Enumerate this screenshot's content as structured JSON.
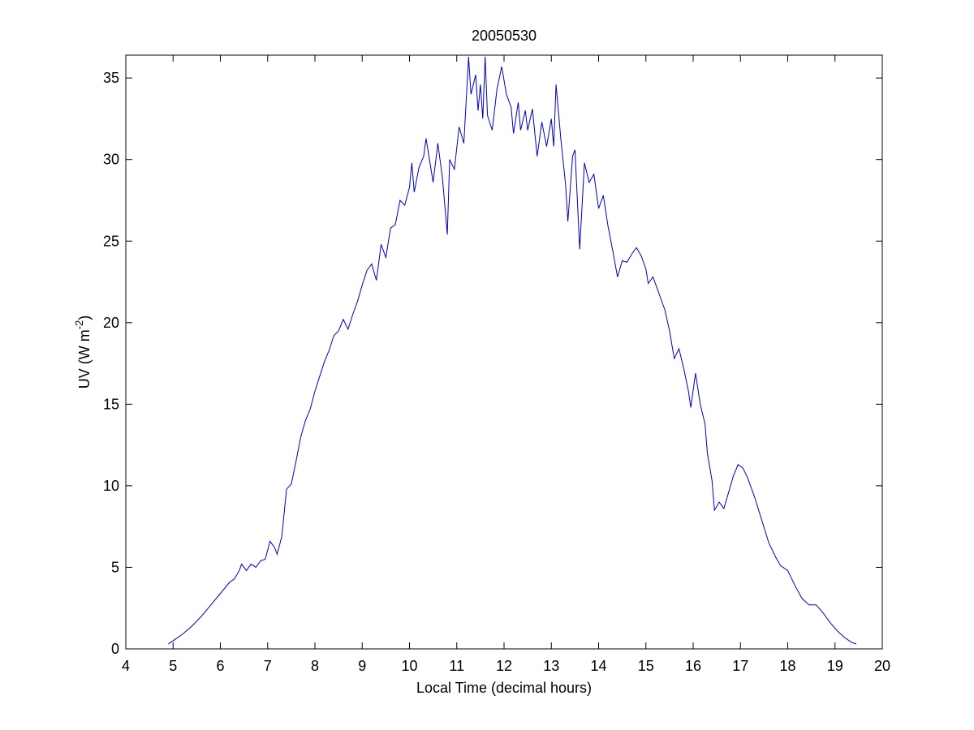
{
  "chart_data": {
    "type": "line",
    "title": "20050530",
    "xlabel": "Local Time (decimal hours)",
    "ylabel": {
      "text": "UV (W m",
      "sup": "-2",
      "suffix": ")"
    },
    "xlim": [
      4,
      20
    ],
    "xticks": [
      4,
      5,
      6,
      7,
      8,
      9,
      10,
      11,
      12,
      13,
      14,
      15,
      16,
      17,
      18,
      19,
      20
    ],
    "ylim": [
      0,
      36.4
    ],
    "yticks": [
      0,
      5,
      10,
      15,
      20,
      25,
      30,
      35
    ],
    "grid": false,
    "series": [
      {
        "color": "#0000c0",
        "x": [
          4.9,
          5.0,
          5.2,
          5.4,
          5.6,
          5.8,
          6.0,
          6.2,
          6.3,
          6.4,
          6.45,
          6.55,
          6.65,
          6.75,
          6.85,
          6.95,
          7.05,
          7.15,
          7.2,
          7.3,
          7.4,
          7.5,
          7.6,
          7.7,
          7.8,
          7.9,
          8.0,
          8.1,
          8.2,
          8.3,
          8.4,
          8.5,
          8.6,
          8.7,
          8.8,
          8.9,
          9.0,
          9.1,
          9.2,
          9.3,
          9.4,
          9.5,
          9.6,
          9.7,
          9.8,
          9.9,
          10.0,
          10.05,
          10.1,
          10.2,
          10.3,
          10.35,
          10.45,
          10.5,
          10.6,
          10.7,
          10.8,
          10.85,
          10.95,
          11.05,
          11.15,
          11.25,
          11.3,
          11.4,
          11.45,
          11.5,
          11.55,
          11.6,
          11.65,
          11.75,
          11.85,
          11.95,
          12.05,
          12.15,
          12.2,
          12.3,
          12.35,
          12.45,
          12.5,
          12.6,
          12.7,
          12.8,
          12.9,
          13.0,
          13.05,
          13.1,
          13.2,
          13.3,
          13.35,
          13.45,
          13.5,
          13.6,
          13.7,
          13.8,
          13.9,
          14.0,
          14.1,
          14.2,
          14.3,
          14.4,
          14.5,
          14.6,
          14.7,
          14.8,
          14.9,
          15.0,
          15.05,
          15.15,
          15.3,
          15.4,
          15.5,
          15.6,
          15.7,
          15.8,
          15.9,
          15.95,
          16.05,
          16.15,
          16.25,
          16.3,
          16.4,
          16.45,
          16.55,
          16.65,
          16.75,
          16.85,
          16.95,
          17.05,
          17.15,
          17.3,
          17.45,
          17.6,
          17.75,
          17.85,
          18.0,
          18.15,
          18.3,
          18.45,
          18.6,
          18.75,
          18.9,
          19.05,
          19.2,
          19.35,
          19.45
        ],
        "values": [
          0.3,
          0.5,
          0.9,
          1.4,
          2.0,
          2.7,
          3.4,
          4.1,
          4.3,
          4.8,
          5.2,
          4.8,
          5.2,
          5.0,
          5.4,
          5.5,
          6.6,
          6.2,
          5.8,
          6.9,
          9.8,
          10.1,
          11.5,
          13.0,
          14.0,
          14.7,
          15.8,
          16.7,
          17.6,
          18.3,
          19.2,
          19.5,
          20.2,
          19.6,
          20.5,
          21.3,
          22.3,
          23.2,
          23.6,
          22.6,
          24.8,
          24.0,
          25.8,
          26.0,
          27.5,
          27.2,
          28.3,
          29.8,
          28.0,
          29.5,
          30.2,
          31.3,
          29.5,
          28.6,
          31.0,
          28.8,
          25.4,
          30.0,
          29.4,
          32.0,
          31.0,
          36.3,
          34.0,
          35.2,
          33.0,
          34.6,
          32.5,
          36.3,
          32.7,
          31.8,
          34.3,
          35.7,
          34.0,
          33.2,
          31.6,
          33.5,
          31.8,
          33.0,
          31.8,
          33.1,
          30.2,
          32.3,
          30.8,
          32.5,
          30.8,
          34.6,
          31.3,
          28.5,
          26.2,
          30.2,
          30.6,
          24.5,
          29.8,
          28.6,
          29.1,
          27.0,
          27.8,
          25.9,
          24.4,
          22.8,
          23.8,
          23.7,
          24.2,
          24.6,
          24.1,
          23.3,
          22.4,
          22.8,
          21.6,
          20.8,
          19.5,
          17.8,
          18.4,
          17.2,
          15.8,
          14.8,
          16.9,
          15.0,
          13.8,
          12.0,
          10.3,
          8.5,
          9.0,
          8.6,
          9.6,
          10.6,
          11.3,
          11.1,
          10.5,
          9.3,
          7.9,
          6.5,
          5.6,
          5.1,
          4.8,
          3.9,
          3.1,
          2.7,
          2.7,
          2.2,
          1.6,
          1.1,
          0.7,
          0.4,
          0.3
        ]
      }
    ]
  }
}
